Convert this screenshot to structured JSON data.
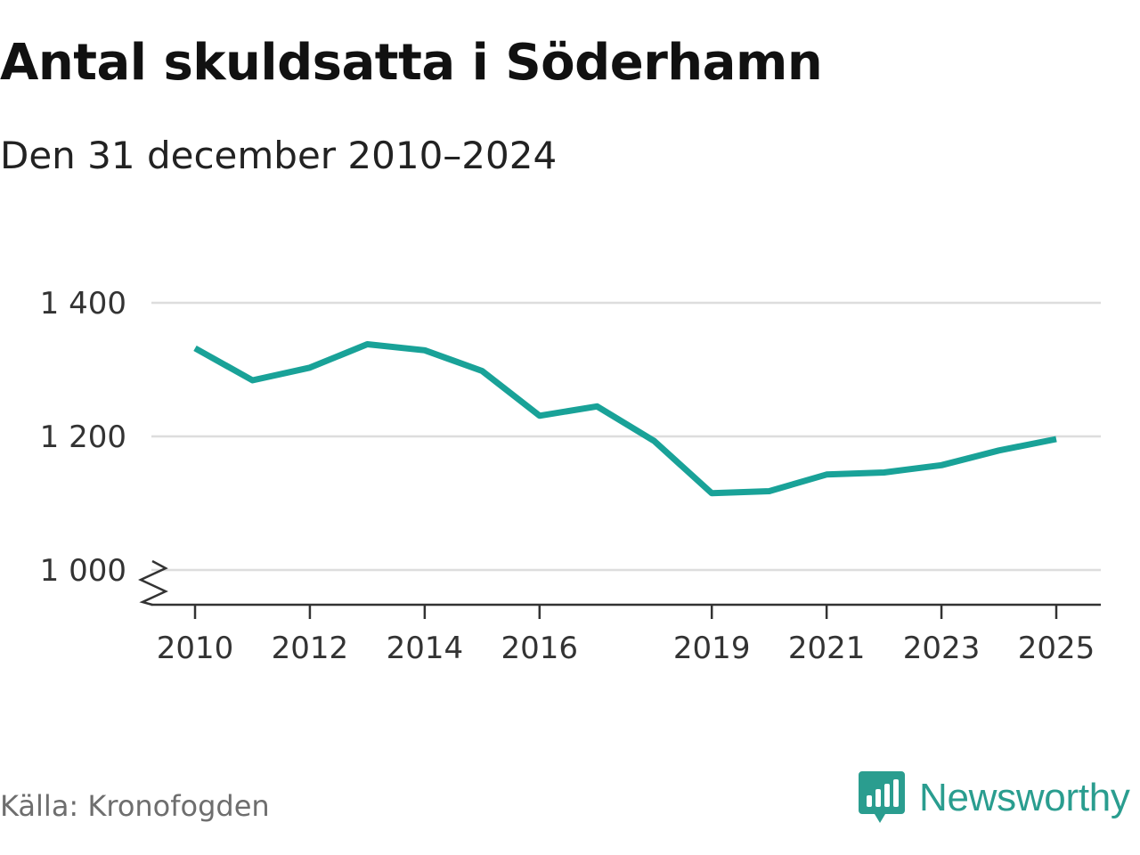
{
  "title": "Antal skuldsatta i Söderhamn",
  "subtitle": "Den 31 december 2010–2024",
  "source": "Källa: Kronofogden",
  "brand": {
    "name": "Newsworthy",
    "icon": "newsworthy-logo-icon",
    "color": "#2a9d8f"
  },
  "colors": {
    "line": "#19a298",
    "grid": "#dddddd",
    "axis": "#333333"
  },
  "chart_data": {
    "type": "line",
    "title": "Antal skuldsatta i Söderhamn",
    "subtitle": "Den 31 december 2010–2024",
    "xlabel": "",
    "ylabel": "",
    "x_ticks": [
      2010,
      2012,
      2014,
      2016,
      2019,
      2021,
      2023,
      2025
    ],
    "x_tick_labels": [
      "2010",
      "2012",
      "2014",
      "2016",
      "2019",
      "2021",
      "2023",
      "2025"
    ],
    "y_ticks": [
      1000,
      1200,
      1400
    ],
    "y_tick_labels": [
      "1 000",
      "1 200",
      "1 400"
    ],
    "ylim": [
      950,
      1400
    ],
    "xlim": [
      2009.2,
      2025.8
    ],
    "y_axis_break": true,
    "grid": true,
    "series": [
      {
        "name": "Antal skuldsatta",
        "x": [
          2010,
          2011,
          2012,
          2013,
          2014,
          2015,
          2016,
          2017,
          2018,
          2019,
          2020,
          2021,
          2022,
          2023,
          2024,
          2025
        ],
        "values": [
          1332,
          1284,
          1303,
          1338,
          1329,
          1298,
          1231,
          1245,
          1193,
          1115,
          1118,
          1143,
          1146,
          1157,
          1179,
          1196
        ]
      }
    ]
  }
}
